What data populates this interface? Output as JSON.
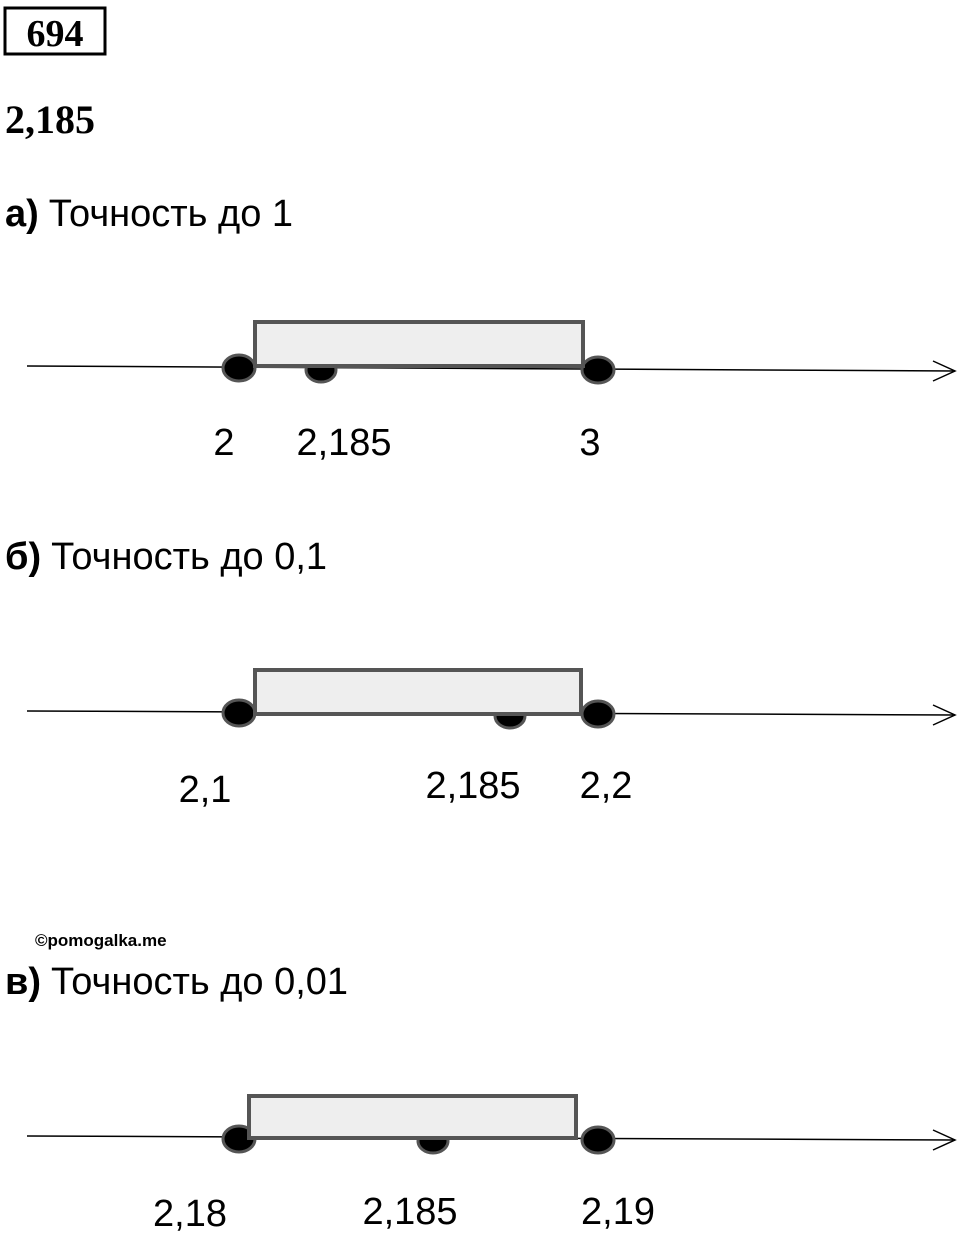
{
  "header": {
    "number": "694",
    "value": "2,185"
  },
  "watermark": "©pomogalka.me",
  "parts": [
    {
      "letter": "а)",
      "title": "Точность до 1",
      "labels": [
        "2",
        "2,185",
        "3"
      ]
    },
    {
      "letter": "б)",
      "title": "Точность до 0,1",
      "labels": [
        "2,1",
        "2,185",
        "2,2"
      ]
    },
    {
      "letter": "в)",
      "title": "Точность до 0,01",
      "labels": [
        "2,18",
        "2,185",
        "2,19"
      ]
    }
  ]
}
